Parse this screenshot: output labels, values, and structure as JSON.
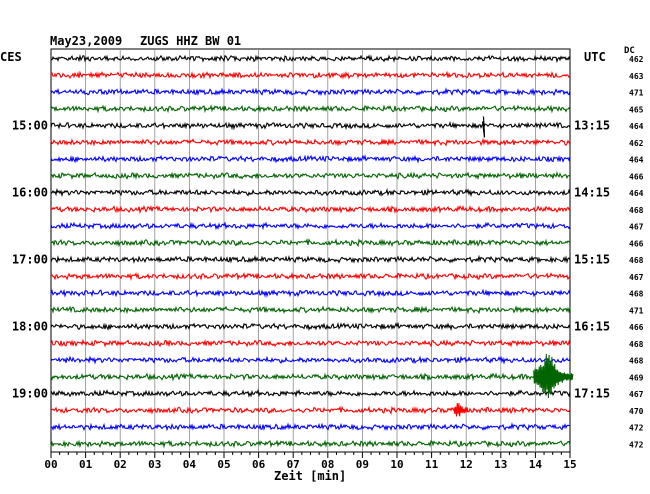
{
  "header": {
    "date": "May23,2009",
    "station": "ZUGS HHZ BW 01",
    "left_tz": "CES",
    "right_tz": "UTC",
    "dc_label": "DC"
  },
  "chart_data": {
    "type": "line",
    "title": "May23,2009   ZUGS HHZ BW 01",
    "xlabel": "Zeit [min]",
    "xlim": [
      0,
      15
    ],
    "x_ticks": [
      "00",
      "01",
      "02",
      "03",
      "04",
      "05",
      "06",
      "07",
      "08",
      "09",
      "10",
      "11",
      "12",
      "13",
      "14",
      "15"
    ],
    "grid": true,
    "trace_colors": [
      "#000000",
      "#ff0000",
      "#0000ff",
      "#006400"
    ],
    "rows": [
      {
        "dc": "462",
        "color": "#000000"
      },
      {
        "dc": "463",
        "color": "#ff0000"
      },
      {
        "dc": "471",
        "color": "#0000ff"
      },
      {
        "dc": "465",
        "color": "#006400"
      },
      {
        "dc": "464",
        "color": "#000000",
        "left_label": "15:00",
        "right_label": "13:15"
      },
      {
        "dc": "462",
        "color": "#ff0000"
      },
      {
        "dc": "464",
        "color": "#0000ff"
      },
      {
        "dc": "466",
        "color": "#006400"
      },
      {
        "dc": "464",
        "color": "#000000",
        "left_label": "16:00",
        "right_label": "14:15"
      },
      {
        "dc": "468",
        "color": "#ff0000"
      },
      {
        "dc": "467",
        "color": "#0000ff"
      },
      {
        "dc": "466",
        "color": "#006400"
      },
      {
        "dc": "468",
        "color": "#000000",
        "left_label": "17:00",
        "right_label": "15:15"
      },
      {
        "dc": "467",
        "color": "#ff0000"
      },
      {
        "dc": "468",
        "color": "#0000ff"
      },
      {
        "dc": "471",
        "color": "#006400"
      },
      {
        "dc": "466",
        "color": "#000000",
        "left_label": "18:00",
        "right_label": "16:15"
      },
      {
        "dc": "468",
        "color": "#ff0000"
      },
      {
        "dc": "468",
        "color": "#0000ff"
      },
      {
        "dc": "469",
        "color": "#006400"
      },
      {
        "dc": "467",
        "color": "#000000",
        "left_label": "19:00",
        "right_label": "17:15"
      },
      {
        "dc": "470",
        "color": "#ff0000"
      },
      {
        "dc": "472",
        "color": "#0000ff"
      },
      {
        "dc": "472",
        "color": "#006400"
      }
    ],
    "events": [
      {
        "row": 4,
        "minute": 12.5,
        "kind": "spike"
      },
      {
        "row": 19,
        "minute": 14.5,
        "kind": "quake"
      },
      {
        "row": 21,
        "minute": 11.8,
        "kind": "burst"
      }
    ]
  }
}
